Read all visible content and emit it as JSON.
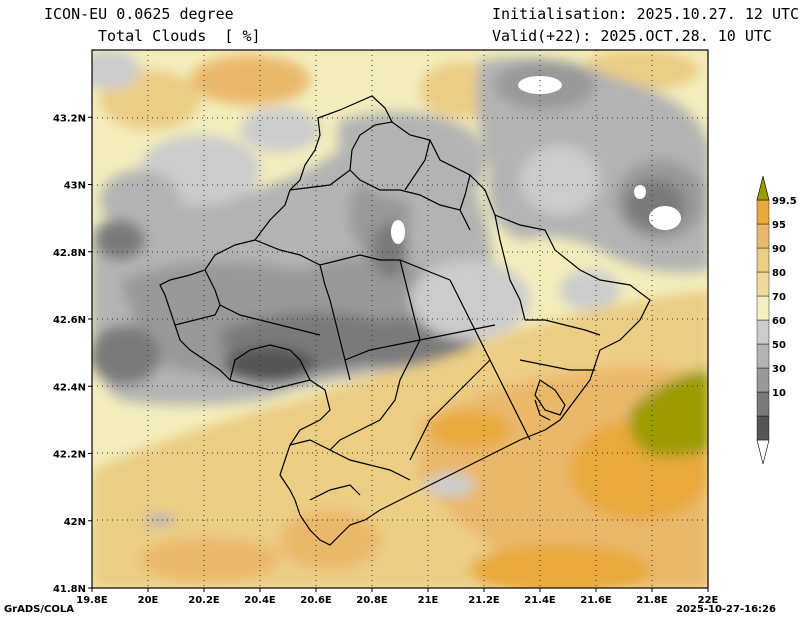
{
  "header": {
    "model": "ICON-EU 0.0625 degree",
    "field": "Total Clouds  [ %]",
    "init": "Initialisation: 2025.10.27. 12 UTC",
    "valid": "Valid(+22): 2025.OCT.28. 10 UTC"
  },
  "footer": {
    "left": "GrADS/COLA",
    "right": "2025-10-27-16:26"
  },
  "axes": {
    "lat_labels": [
      "43.2N",
      "43N",
      "42.8N",
      "42.6N",
      "42.4N",
      "42.2N",
      "42N",
      "41.8N"
    ],
    "lat_values": [
      43.2,
      43.0,
      42.8,
      42.6,
      42.4,
      42.2,
      42.0,
      41.8
    ],
    "lon_labels": [
      "19.8E",
      "20E",
      "20.2E",
      "20.4E",
      "20.6E",
      "20.8E",
      "21E",
      "21.2E",
      "21.4E",
      "21.6E",
      "21.8E",
      "22E"
    ],
    "lon_values": [
      19.8,
      20.0,
      20.2,
      20.4,
      20.6,
      20.8,
      21.0,
      21.2,
      21.4,
      21.6,
      21.8,
      22.0
    ],
    "lon_range": [
      19.8,
      22.0
    ],
    "lat_range": [
      41.8,
      43.4
    ]
  },
  "colorbar": {
    "labels": [
      "99.5",
      "95",
      "90",
      "80",
      "70",
      "60",
      "50",
      "30",
      "10"
    ],
    "colors": [
      "#ffffff",
      "#555555",
      "#7a7a7a",
      "#999999",
      "#b3b3b3",
      "#cccccc",
      "#f5efc0",
      "#eedb9a",
      "#ebcd84",
      "#eab86a",
      "#e9a93a",
      "#9c9b00"
    ],
    "colors_order": "bottom-to-top"
  }
}
